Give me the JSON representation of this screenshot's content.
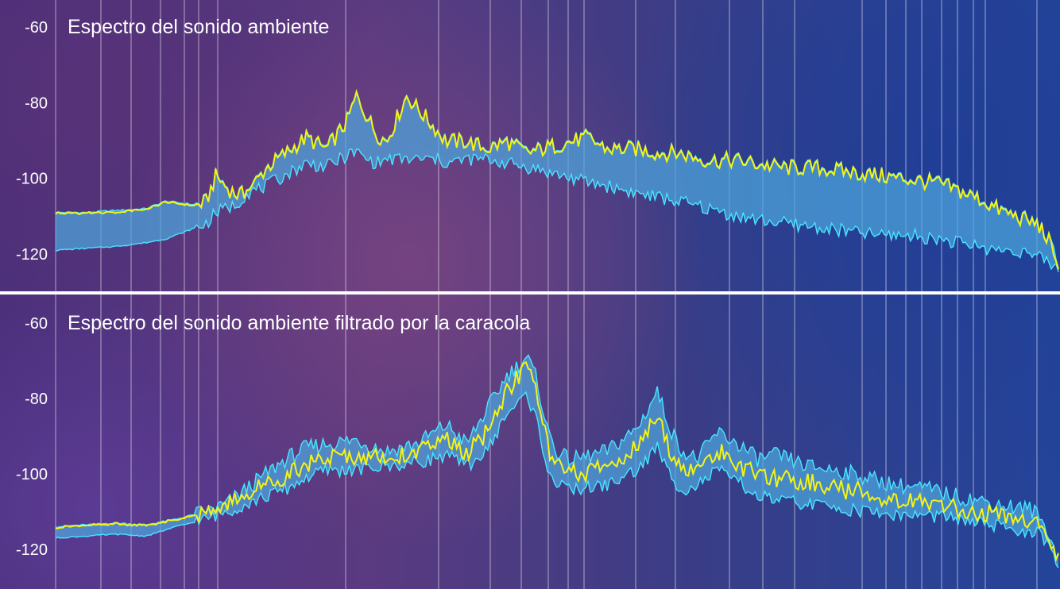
{
  "chart_data": [
    {
      "type": "area",
      "title": "Espectro del sonido ambiente",
      "xlabel": "",
      "ylabel": "",
      "ylim": [
        -130,
        -55
      ],
      "yticks": [
        -60,
        -80,
        -100,
        -120
      ],
      "grid": "vertical",
      "colors": {
        "band": "#4ea6de",
        "band_edge": "#47e6ff",
        "line": "#f4f414"
      },
      "x": [
        0,
        0.03,
        0.06,
        0.09,
        0.11,
        0.14,
        0.15,
        0.16,
        0.17,
        0.18,
        0.19,
        0.21,
        0.23,
        0.25,
        0.27,
        0.29,
        0.3,
        0.31,
        0.32,
        0.33,
        0.35,
        0.37,
        0.38,
        0.39,
        0.41,
        0.43,
        0.45,
        0.47,
        0.5,
        0.53,
        0.55,
        0.58,
        0.6,
        0.62,
        0.65,
        0.68,
        0.7,
        0.73,
        0.76,
        0.79,
        0.82,
        0.85,
        0.88,
        0.9,
        0.92,
        0.94,
        0.96,
        0.97,
        0.98,
        0.99,
        1.0
      ],
      "series": [
        {
          "values": [
            -109,
            -109,
            -108.5,
            -108,
            -106,
            -107,
            -106,
            -99,
            -102,
            -104,
            -104,
            -97,
            -93,
            -89,
            -92,
            -85,
            -78,
            -83,
            -88,
            -90,
            -78,
            -84,
            -87,
            -90,
            -90,
            -92,
            -90,
            -93,
            -91,
            -89,
            -92,
            -92,
            -93,
            -93,
            -95,
            -95,
            -96,
            -97,
            -97,
            -98,
            -99,
            -100,
            -101,
            -103,
            -105,
            -108,
            -110,
            -111,
            -112,
            -116,
            -123
          ]
        },
        {
          "values": [
            -119,
            -118.5,
            -118,
            -117,
            -116,
            -113,
            -112,
            -109,
            -108,
            -107,
            -104,
            -102,
            -99,
            -96,
            -97,
            -94,
            -93,
            -95,
            -96,
            -95,
            -95,
            -95,
            -95,
            -96,
            -95,
            -95,
            -96,
            -97,
            -99,
            -101,
            -102,
            -104,
            -105,
            -106,
            -108,
            -110,
            -111,
            -112,
            -113,
            -114,
            -115,
            -115,
            -116,
            -117,
            -118,
            -119,
            -119,
            -120,
            -121,
            -122,
            -124
          ]
        },
        {
          "values": [
            -109,
            -109,
            -109,
            -108,
            -106,
            -104,
            -102,
            -95,
            -94,
            -96,
            -98,
            -94,
            -89,
            -84,
            -87,
            -81,
            -76,
            -79,
            -82,
            -84,
            -74,
            -78,
            -82,
            -84,
            -85,
            -87,
            -85,
            -87,
            -86,
            -85,
            -87,
            -87,
            -88,
            -88,
            -89,
            -90,
            -92,
            -92,
            -92,
            -93,
            -93,
            -94,
            -96,
            -98,
            -100,
            -103,
            -106,
            -107,
            -108,
            -113,
            -122
          ]
        }
      ]
    },
    {
      "type": "area",
      "title": "Espectro del sonido ambiente filtrado por la caracola",
      "xlabel": "",
      "ylabel": "",
      "ylim": [
        -130,
        -55
      ],
      "yticks": [
        -60,
        -80,
        -100,
        -120
      ],
      "grid": "vertical",
      "colors": {
        "band": "#4ea6de",
        "band_edge": "#47e6ff",
        "line": "#f4f414"
      },
      "x": [
        0,
        0.03,
        0.06,
        0.09,
        0.12,
        0.15,
        0.17,
        0.2,
        0.23,
        0.25,
        0.27,
        0.3,
        0.33,
        0.36,
        0.39,
        0.41,
        0.43,
        0.45,
        0.47,
        0.48,
        0.49,
        0.5,
        0.51,
        0.52,
        0.55,
        0.58,
        0.6,
        0.61,
        0.62,
        0.63,
        0.64,
        0.66,
        0.68,
        0.69,
        0.7,
        0.72,
        0.75,
        0.78,
        0.81,
        0.84,
        0.87,
        0.9,
        0.92,
        0.94,
        0.96,
        0.97,
        0.98,
        0.99,
        1.0
      ],
      "series": [
        {
          "values": [
            -114,
            -113.5,
            -113,
            -113.5,
            -112,
            -110,
            -108,
            -102,
            -96,
            -93,
            -92,
            -91,
            -94,
            -92,
            -87,
            -92,
            -83,
            -74,
            -69,
            -75,
            -88,
            -94,
            -96,
            -96,
            -94,
            -88,
            -78,
            -86,
            -92,
            -95,
            -96,
            -89,
            -92,
            -94,
            -96,
            -95,
            -98,
            -99,
            -101,
            -103,
            -104,
            -106,
            -107,
            -108,
            -109,
            -109,
            -111,
            -116,
            -122
          ]
        },
        {
          "values": [
            -117,
            -116.5,
            -116,
            -116.5,
            -114,
            -112,
            -110,
            -107,
            -104,
            -101,
            -99,
            -99,
            -98,
            -97,
            -95,
            -98,
            -94,
            -84,
            -79,
            -86,
            -98,
            -103,
            -104,
            -104,
            -103,
            -99,
            -93,
            -99,
            -103,
            -104,
            -103,
            -99,
            -102,
            -104,
            -106,
            -107,
            -108,
            -109,
            -110,
            -111,
            -111,
            -112,
            -113,
            -114,
            -115,
            -115,
            -116,
            -119,
            -125
          ]
        },
        {
          "values": [
            -114,
            -113.5,
            -113,
            -113.5,
            -112,
            -110,
            -108,
            -104,
            -100,
            -97,
            -96,
            -95,
            -96,
            -94,
            -91,
            -95,
            -89,
            -78,
            -71,
            -79,
            -92,
            -98,
            -100,
            -100,
            -98,
            -93,
            -85,
            -92,
            -97,
            -99,
            -99,
            -94,
            -97,
            -99,
            -101,
            -101,
            -102,
            -104,
            -105,
            -107,
            -108,
            -109,
            -110,
            -111,
            -112,
            -112,
            -113,
            -117,
            -123
          ]
        }
      ]
    }
  ]
}
